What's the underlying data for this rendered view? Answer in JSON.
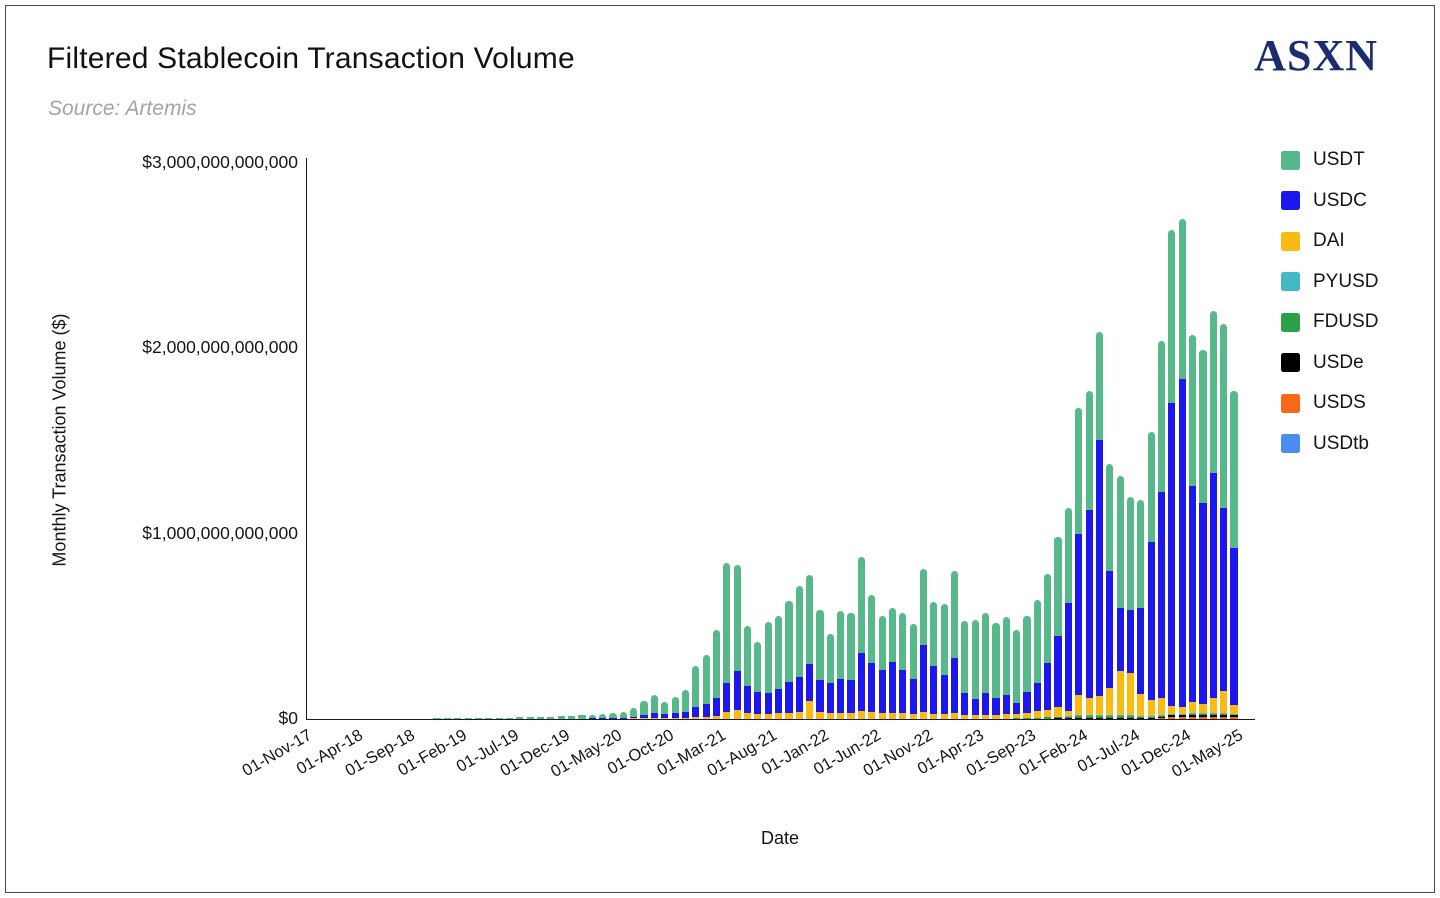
{
  "header": {
    "title": "Filtered Stablecoin Transaction Volume",
    "source": "Source: Artemis",
    "logo": "ASXN"
  },
  "chart_data": {
    "type": "bar",
    "stacked": true,
    "title": "Filtered Stablecoin Transaction Volume",
    "subtitle": "Source: Artemis",
    "xlabel": "Date",
    "ylabel": "Monthly Transaction Volume ($)",
    "unit": "billions of USD per month",
    "ylim_billions": [
      0,
      3000
    ],
    "grid": false,
    "legend_position": "top-right",
    "y_ticks": [
      {
        "value_billions": 0,
        "label": "$0"
      },
      {
        "value_billions": 1000,
        "label": "$1,000,000,000,000"
      },
      {
        "value_billions": 2000,
        "label": "$2,000,000,000,000"
      },
      {
        "value_billions": 3000,
        "label": "$3,000,000,000,000"
      }
    ],
    "x_tick_first_index": 1,
    "x_tick_step": 5,
    "x_tick_labels": [
      "01-Nov-17",
      "01-Apr-18",
      "01-Sep-18",
      "01-Feb-19",
      "01-Jul-19",
      "01-Dec-19",
      "01-May-20",
      "01-Oct-20",
      "01-Mar-21",
      "01-Aug-21",
      "01-Jan-22",
      "01-Jun-22",
      "01-Nov-22",
      "01-Apr-23",
      "01-Sep-23",
      "01-Feb-24",
      "01-Jul-24",
      "01-Dec-24",
      "01-May-25"
    ],
    "categories": [
      "Oct-17",
      "Nov-17",
      "Dec-17",
      "Jan-18",
      "Feb-18",
      "Mar-18",
      "Apr-18",
      "May-18",
      "Jun-18",
      "Jul-18",
      "Aug-18",
      "Sep-18",
      "Oct-18",
      "Nov-18",
      "Dec-18",
      "Jan-19",
      "Feb-19",
      "Mar-19",
      "Apr-19",
      "May-19",
      "Jun-19",
      "Jul-19",
      "Aug-19",
      "Sep-19",
      "Oct-19",
      "Nov-19",
      "Dec-19",
      "Jan-20",
      "Feb-20",
      "Mar-20",
      "Apr-20",
      "May-20",
      "Jun-20",
      "Jul-20",
      "Aug-20",
      "Sep-20",
      "Oct-20",
      "Nov-20",
      "Dec-20",
      "Jan-21",
      "Feb-21",
      "Mar-21",
      "Apr-21",
      "May-21",
      "Jun-21",
      "Jul-21",
      "Aug-21",
      "Sep-21",
      "Oct-21",
      "Nov-21",
      "Dec-21",
      "Jan-22",
      "Feb-22",
      "Mar-22",
      "Apr-22",
      "May-22",
      "Jun-22",
      "Jul-22",
      "Aug-22",
      "Sep-22",
      "Oct-22",
      "Nov-22",
      "Dec-22",
      "Jan-23",
      "Feb-23",
      "Mar-23",
      "Apr-23",
      "May-23",
      "Jun-23",
      "Jul-23",
      "Aug-23",
      "Sep-23",
      "Oct-23",
      "Nov-23",
      "Dec-23",
      "Jan-24",
      "Feb-24",
      "Mar-24",
      "Apr-24",
      "May-24",
      "Jun-24",
      "Jul-24",
      "Aug-24",
      "Sep-24",
      "Oct-24",
      "Nov-24",
      "Dec-24",
      "Jan-25",
      "Feb-25",
      "Mar-25",
      "Apr-25",
      "May-25"
    ],
    "series": [
      {
        "name": "USDT",
        "color": "#57b98a",
        "values": [
          0.3,
          0.4,
          0.5,
          1,
          1,
          1,
          1,
          1,
          1,
          1.5,
          1.5,
          2,
          2,
          2.5,
          3,
          3,
          3.5,
          4,
          4.5,
          5.5,
          6.5,
          7,
          7.2,
          8,
          10,
          11.5,
          13.5,
          16,
          17.5,
          20,
          22,
          25,
          33,
          48,
          71,
          101,
          63,
          87,
          116,
          219,
          266,
          368,
          644,
          571,
          320,
          273,
          387,
          396,
          437,
          492,
          480,
          380,
          264,
          370,
          364,
          518,
          365,
          292,
          291,
          306,
          299,
          409,
          347,
          380,
          470,
          388,
          428,
          432,
          405,
          423,
          392,
          409,
          446,
          476,
          532,
          513,
          680,
          642,
          584,
          576,
          716,
          612,
          583,
          593,
          813,
          933,
          867,
          813,
          823,
          871,
          993,
          849
        ]
      },
      {
        "name": "USDC",
        "color": "#1b17ee",
        "values": [
          0,
          0,
          0,
          0,
          0,
          0,
          0,
          0,
          0,
          0,
          0,
          0,
          0,
          0,
          0,
          0,
          0,
          0,
          0,
          0,
          0,
          0.3,
          0.3,
          0.4,
          0.5,
          0.6,
          0.7,
          1,
          1.5,
          2,
          2,
          3,
          4,
          8,
          18,
          22,
          21,
          27,
          33,
          56,
          67,
          94,
          160,
          210,
          150,
          119,
          110,
          130,
          165,
          188,
          202,
          170,
          161,
          179,
          177,
          313,
          266,
          234,
          277,
          234,
          186,
          363,
          258,
          215,
          300,
          120,
          86,
          116,
          91,
          104,
          62,
          112,
          152,
          253,
          383,
          579,
          871,
          1013,
          1380,
          635,
          338,
          342,
          464,
          854,
          1112,
          1635,
          1766,
          1167,
          1088,
          1214,
          986,
          845
        ]
      },
      {
        "name": "DAI",
        "color": "#f9ba13",
        "values": [
          0,
          0,
          0,
          0,
          0,
          0,
          0,
          0,
          0,
          0,
          0,
          0,
          0,
          0,
          0,
          0,
          0,
          0,
          0.3,
          0.4,
          0.5,
          0.6,
          0.6,
          0.7,
          0.8,
          0.9,
          1,
          1,
          1,
          2,
          2,
          2,
          3,
          4,
          6,
          8,
          6,
          6,
          7,
          10,
          12,
          18,
          36,
          49,
          30,
          25,
          28,
          30,
          35,
          40,
          95,
          40,
          35,
          35,
          33,
          45,
          38,
          30,
          32,
          30,
          28,
          36,
          28,
          25,
          30,
          22,
          20,
          22,
          20,
          23,
          22,
          30,
          38,
          42,
          52,
          31,
          110,
          95,
          105,
          145,
          236,
          225,
          115,
          85,
          92,
          45,
          40,
          60,
          49,
          84,
          119,
          47
        ]
      },
      {
        "name": "PYUSD",
        "color": "#45b7c6",
        "values": [
          0,
          0,
          0,
          0,
          0,
          0,
          0,
          0,
          0,
          0,
          0,
          0,
          0,
          0,
          0,
          0,
          0,
          0,
          0,
          0,
          0,
          0,
          0,
          0,
          0,
          0,
          0,
          0,
          0,
          0,
          0,
          0,
          0,
          0,
          0,
          0,
          0,
          0,
          0,
          0,
          0,
          0,
          0,
          0,
          0,
          0,
          0,
          0,
          0,
          0,
          0,
          0,
          0,
          0,
          0,
          0,
          0,
          0,
          0,
          0,
          0,
          0,
          0,
          0,
          0,
          0,
          0,
          0,
          0,
          0,
          0,
          0,
          0,
          0,
          0,
          1,
          2,
          2,
          2,
          2,
          2,
          3,
          3,
          2,
          2,
          2,
          2,
          3,
          3,
          3,
          3,
          2
        ]
      },
      {
        "name": "FDUSD",
        "color": "#2ba147",
        "values": [
          0,
          0,
          0,
          0,
          0,
          0,
          0,
          0,
          0,
          0,
          0,
          0,
          0,
          0,
          0,
          0,
          0,
          0,
          0,
          0,
          0,
          0,
          0,
          0,
          0,
          0,
          0,
          0,
          0,
          0,
          0,
          0,
          0,
          0,
          0,
          0,
          0,
          0,
          0,
          0,
          0,
          0,
          0,
          0,
          0,
          0,
          0,
          0,
          0,
          0,
          0,
          0,
          0,
          0,
          0,
          0,
          0,
          0,
          0,
          0,
          0,
          0,
          0,
          0,
          0,
          0,
          0,
          0,
          0,
          2,
          4,
          5,
          6,
          8,
          10,
          8,
          10,
          10,
          12,
          12,
          15,
          12,
          10,
          8,
          8,
          6,
          5,
          5,
          4,
          4,
          4,
          3
        ]
      },
      {
        "name": "USDe",
        "color": "#000000",
        "values": [
          0,
          0,
          0,
          0,
          0,
          0,
          0,
          0,
          0,
          0,
          0,
          0,
          0,
          0,
          0,
          0,
          0,
          0,
          0,
          0,
          0,
          0,
          0,
          0,
          0,
          0,
          0,
          0,
          0,
          0,
          0,
          0,
          0,
          0,
          0,
          0,
          0,
          0,
          0,
          0,
          0,
          0,
          0,
          0,
          0,
          0,
          0,
          0,
          0,
          0,
          0,
          0,
          0,
          0,
          0,
          0,
          0,
          0,
          0,
          0,
          0,
          0,
          0,
          0,
          0,
          0,
          0,
          0,
          0,
          0,
          0,
          0,
          0,
          1,
          3,
          5,
          7,
          8,
          7,
          6,
          6,
          6,
          5,
          6,
          8,
          10,
          10,
          12,
          12,
          12,
          13,
          12
        ]
      },
      {
        "name": "USDS",
        "color": "#f8681a",
        "values": [
          0,
          0,
          0,
          0,
          0,
          0,
          0,
          0,
          0,
          0,
          0,
          0,
          0,
          0,
          0,
          0,
          0,
          0,
          0,
          0,
          0,
          0,
          0,
          0,
          0,
          0,
          0,
          0,
          0,
          0,
          0,
          0,
          0,
          0,
          0,
          0,
          0,
          0,
          0,
          0,
          0,
          0,
          0,
          0,
          0,
          0,
          0,
          0,
          0,
          0,
          0,
          0,
          0,
          0,
          0,
          0,
          0,
          0,
          0,
          0,
          0,
          0,
          0,
          0,
          0,
          0,
          0,
          0,
          0,
          0,
          0,
          0,
          0,
          0,
          0,
          0,
          0,
          0,
          0,
          0,
          0,
          0,
          0,
          2,
          5,
          9,
          10,
          10,
          10,
          11,
          11,
          11
        ]
      },
      {
        "name": "USDtb",
        "color": "#4a8cf0",
        "values": [
          0,
          0,
          0,
          0,
          0,
          0,
          0,
          0,
          0,
          0,
          0,
          0,
          0,
          0,
          0,
          0,
          0,
          0,
          0,
          0,
          0,
          0,
          0,
          0,
          0,
          0,
          0,
          0,
          0,
          0,
          0,
          0,
          0,
          0,
          0,
          0,
          0,
          0,
          0,
          0,
          0,
          0,
          0,
          0,
          0,
          0,
          0,
          0,
          0,
          0,
          0,
          0,
          0,
          0,
          0,
          0,
          0,
          0,
          0,
          0,
          0,
          0,
          0,
          0,
          0,
          0,
          0,
          0,
          0,
          0,
          0,
          0,
          0,
          0,
          0,
          0,
          0,
          0,
          0,
          0,
          0,
          0,
          0,
          0,
          0,
          0,
          0,
          0,
          1,
          1,
          1,
          1
        ]
      }
    ]
  }
}
